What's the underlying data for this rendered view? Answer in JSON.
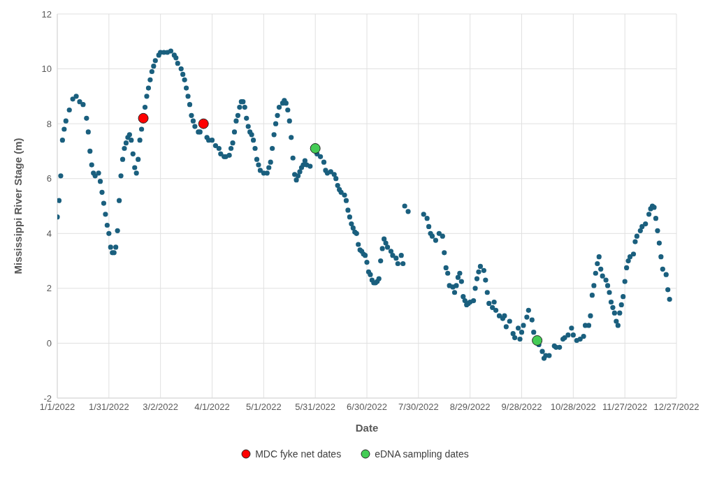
{
  "chart_data": {
    "type": "scatter",
    "xlabel": "Date",
    "ylabel": "Mississippi River Stage (m)",
    "xlim": [
      "2022-01-01",
      "2022-12-27"
    ],
    "xticks": [
      {
        "value": "2022-01-01",
        "label": "1/1/2022"
      },
      {
        "value": "2022-01-31",
        "label": "1/31/2022"
      },
      {
        "value": "2022-03-02",
        "label": "3/2/2022"
      },
      {
        "value": "2022-04-01",
        "label": "4/1/2022"
      },
      {
        "value": "2022-05-01",
        "label": "5/1/2022"
      },
      {
        "value": "2022-05-31",
        "label": "5/31/2022"
      },
      {
        "value": "2022-06-30",
        "label": "6/30/2022"
      },
      {
        "value": "2022-07-30",
        "label": "7/30/2022"
      },
      {
        "value": "2022-08-29",
        "label": "8/29/2022"
      },
      {
        "value": "2022-09-28",
        "label": "9/28/2022"
      },
      {
        "value": "2022-10-28",
        "label": "10/28/2022"
      },
      {
        "value": "2022-11-27",
        "label": "11/27/2022"
      },
      {
        "value": "2022-12-27",
        "label": "12/27/2022"
      }
    ],
    "ylim": [
      -2,
      12
    ],
    "yticks": [
      -2,
      0,
      2,
      4,
      6,
      8,
      10,
      12
    ],
    "grid": true,
    "legend": "bottom",
    "marker": "circle",
    "series": [
      {
        "color": "#1a5f7e",
        "x": [
          "2022-01-01",
          "2022-01-02",
          "2022-01-03",
          "2022-01-04",
          "2022-01-05",
          "2022-01-06",
          "2022-01-08",
          "2022-01-10",
          "2022-01-12",
          "2022-01-14",
          "2022-01-16",
          "2022-01-18",
          "2022-01-19",
          "2022-01-20",
          "2022-01-21",
          "2022-01-22",
          "2022-01-23",
          "2022-01-25",
          "2022-01-26",
          "2022-01-27",
          "2022-01-28",
          "2022-01-29",
          "2022-01-30",
          "2022-01-31",
          "2022-02-01",
          "2022-02-02",
          "2022-02-03",
          "2022-02-04",
          "2022-02-05",
          "2022-02-06",
          "2022-02-07",
          "2022-02-08",
          "2022-02-09",
          "2022-02-10",
          "2022-02-11",
          "2022-02-12",
          "2022-02-13",
          "2022-02-14",
          "2022-02-15",
          "2022-02-16",
          "2022-02-17",
          "2022-02-18",
          "2022-02-19",
          "2022-02-21",
          "2022-02-22",
          "2022-02-23",
          "2022-02-24",
          "2022-02-25",
          "2022-02-26",
          "2022-02-27",
          "2022-03-01",
          "2022-03-02",
          "2022-03-04",
          "2022-03-06",
          "2022-03-08",
          "2022-03-10",
          "2022-03-11",
          "2022-03-12",
          "2022-03-14",
          "2022-03-15",
          "2022-03-16",
          "2022-03-17",
          "2022-03-18",
          "2022-03-19",
          "2022-03-20",
          "2022-03-21",
          "2022-03-22",
          "2022-03-24",
          "2022-03-25",
          "2022-03-29",
          "2022-03-30",
          "2022-04-01",
          "2022-04-03",
          "2022-04-05",
          "2022-04-06",
          "2022-04-08",
          "2022-04-09",
          "2022-04-11",
          "2022-04-12",
          "2022-04-13",
          "2022-04-14",
          "2022-04-15",
          "2022-04-16",
          "2022-04-17",
          "2022-04-18",
          "2022-04-19",
          "2022-04-20",
          "2022-04-21",
          "2022-04-22",
          "2022-04-23",
          "2022-04-24",
          "2022-04-25",
          "2022-04-26",
          "2022-04-27",
          "2022-04-28",
          "2022-04-29",
          "2022-05-01",
          "2022-05-03",
          "2022-05-04",
          "2022-05-05",
          "2022-05-06",
          "2022-05-07",
          "2022-05-08",
          "2022-05-09",
          "2022-05-10",
          "2022-05-12",
          "2022-05-13",
          "2022-05-14",
          "2022-05-15",
          "2022-05-16",
          "2022-05-17",
          "2022-05-18",
          "2022-05-19",
          "2022-05-20",
          "2022-05-21",
          "2022-05-22",
          "2022-05-23",
          "2022-05-24",
          "2022-05-25",
          "2022-05-26",
          "2022-05-28",
          "2022-06-01",
          "2022-06-03",
          "2022-06-05",
          "2022-06-06",
          "2022-06-07",
          "2022-06-09",
          "2022-06-11",
          "2022-06-12",
          "2022-06-13",
          "2022-06-14",
          "2022-06-15",
          "2022-06-17",
          "2022-06-18",
          "2022-06-19",
          "2022-06-20",
          "2022-06-21",
          "2022-06-22",
          "2022-06-23",
          "2022-06-24",
          "2022-06-25",
          "2022-06-26",
          "2022-06-27",
          "2022-06-28",
          "2022-06-29",
          "2022-06-30",
          "2022-07-01",
          "2022-07-02",
          "2022-07-03",
          "2022-07-04",
          "2022-07-05",
          "2022-07-06",
          "2022-07-07",
          "2022-07-08",
          "2022-07-09",
          "2022-07-10",
          "2022-07-11",
          "2022-07-12",
          "2022-07-14",
          "2022-07-15",
          "2022-07-17",
          "2022-07-18",
          "2022-07-20",
          "2022-07-21",
          "2022-07-22",
          "2022-07-24",
          "2022-08-02",
          "2022-08-04",
          "2022-08-05",
          "2022-08-06",
          "2022-08-07",
          "2022-08-09",
          "2022-08-11",
          "2022-08-13",
          "2022-08-14",
          "2022-08-15",
          "2022-08-16",
          "2022-08-17",
          "2022-08-19",
          "2022-08-20",
          "2022-08-21",
          "2022-08-22",
          "2022-08-23",
          "2022-08-24",
          "2022-08-25",
          "2022-08-26",
          "2022-08-27",
          "2022-08-28",
          "2022-08-29",
          "2022-08-31",
          "2022-09-01",
          "2022-09-02",
          "2022-09-03",
          "2022-09-04",
          "2022-09-06",
          "2022-09-07",
          "2022-09-08",
          "2022-09-09",
          "2022-09-11",
          "2022-09-12",
          "2022-09-13",
          "2022-09-15",
          "2022-09-17",
          "2022-09-18",
          "2022-09-19",
          "2022-09-21",
          "2022-09-23",
          "2022-09-24",
          "2022-09-26",
          "2022-09-27",
          "2022-09-28",
          "2022-09-29",
          "2022-10-01",
          "2022-10-02",
          "2022-10-04",
          "2022-10-05",
          "2022-10-08",
          "2022-10-10",
          "2022-10-11",
          "2022-10-12",
          "2022-10-14",
          "2022-10-17",
          "2022-10-18",
          "2022-10-20",
          "2022-10-22",
          "2022-10-23",
          "2022-10-25",
          "2022-10-27",
          "2022-10-28",
          "2022-10-30",
          "2022-11-01",
          "2022-11-03",
          "2022-11-04",
          "2022-11-06",
          "2022-11-07",
          "2022-11-08",
          "2022-11-09",
          "2022-11-10",
          "2022-11-11",
          "2022-11-12",
          "2022-11-13",
          "2022-11-14",
          "2022-11-16",
          "2022-11-17",
          "2022-11-18",
          "2022-11-19",
          "2022-11-20",
          "2022-11-21",
          "2022-11-22",
          "2022-11-23",
          "2022-11-24",
          "2022-11-25",
          "2022-11-26",
          "2022-11-27",
          "2022-11-28",
          "2022-11-29",
          "2022-11-30",
          "2022-12-02",
          "2022-12-03",
          "2022-12-04",
          "2022-12-06",
          "2022-12-07",
          "2022-12-09",
          "2022-12-11",
          "2022-12-12",
          "2022-12-13",
          "2022-12-14",
          "2022-12-15",
          "2022-12-16",
          "2022-12-17",
          "2022-12-18",
          "2022-12-19",
          "2022-12-21",
          "2022-12-22",
          "2022-12-23"
        ],
        "values": [
          4.6,
          5.2,
          6.1,
          7.4,
          7.8,
          8.1,
          8.5,
          8.9,
          9.0,
          8.8,
          8.7,
          8.2,
          7.7,
          7.0,
          6.5,
          6.2,
          6.1,
          6.2,
          5.9,
          5.5,
          5.1,
          4.7,
          4.3,
          4.0,
          3.5,
          3.3,
          3.3,
          3.5,
          4.1,
          5.2,
          6.1,
          6.7,
          7.1,
          7.3,
          7.5,
          7.6,
          7.4,
          6.9,
          6.4,
          6.2,
          6.7,
          7.4,
          7.8,
          8.6,
          9.0,
          9.3,
          9.6,
          9.9,
          10.1,
          10.3,
          10.5,
          10.6,
          10.6,
          10.6,
          10.65,
          10.5,
          10.4,
          10.2,
          10.0,
          9.8,
          9.6,
          9.3,
          9.0,
          8.7,
          8.3,
          8.1,
          7.9,
          7.7,
          7.7,
          7.5,
          7.4,
          7.4,
          7.2,
          7.1,
          6.9,
          6.8,
          6.8,
          6.85,
          7.1,
          7.3,
          7.7,
          8.1,
          8.3,
          8.6,
          8.8,
          8.8,
          8.6,
          8.2,
          7.9,
          7.7,
          7.6,
          7.4,
          7.1,
          6.7,
          6.5,
          6.3,
          6.2,
          6.2,
          6.4,
          6.6,
          7.1,
          7.6,
          8.0,
          8.3,
          8.6,
          8.75,
          8.85,
          8.75,
          8.5,
          8.1,
          7.5,
          6.75,
          6.15,
          5.95,
          6.1,
          6.25,
          6.4,
          6.5,
          6.65,
          6.5,
          6.45,
          6.9,
          6.8,
          6.6,
          6.3,
          6.2,
          6.25,
          6.15,
          6.0,
          5.75,
          5.6,
          5.5,
          5.4,
          5.2,
          4.85,
          4.6,
          4.35,
          4.2,
          4.05,
          4.0,
          3.6,
          3.4,
          3.35,
          3.25,
          3.2,
          2.95,
          2.6,
          2.5,
          2.3,
          2.2,
          2.2,
          2.25,
          2.35,
          3.0,
          3.45,
          3.8,
          3.65,
          3.5,
          3.35,
          3.2,
          3.1,
          2.9,
          3.2,
          2.9,
          5.0,
          4.8,
          4.7,
          4.55,
          4.25,
          4.0,
          3.9,
          3.75,
          4.0,
          3.9,
          3.3,
          2.75,
          2.55,
          2.1,
          2.05,
          1.85,
          2.1,
          2.4,
          2.55,
          2.25,
          1.7,
          1.55,
          1.4,
          1.45,
          1.5,
          1.55,
          2.0,
          2.35,
          2.6,
          2.8,
          2.65,
          2.3,
          1.85,
          1.45,
          1.3,
          1.5,
          1.2,
          1.0,
          0.9,
          1.0,
          0.6,
          0.8,
          0.35,
          0.2,
          0.55,
          0.15,
          0.4,
          0.65,
          0.95,
          1.2,
          0.85,
          0.4,
          -0.05,
          -0.3,
          -0.55,
          -0.45,
          -0.45,
          -0.1,
          -0.15,
          -0.15,
          0.15,
          0.2,
          0.3,
          0.55,
          0.3,
          0.1,
          0.15,
          0.25,
          0.65,
          0.65,
          1.0,
          1.75,
          2.1,
          2.55,
          2.9,
          3.15,
          2.7,
          2.45,
          2.3,
          2.1,
          1.85,
          1.5,
          1.3,
          1.1,
          0.8,
          0.65,
          1.1,
          1.4,
          1.7,
          2.25,
          2.75,
          3.0,
          3.15,
          3.25,
          3.7,
          3.9,
          4.1,
          4.25,
          4.35,
          4.7,
          4.9,
          5.0,
          4.95,
          4.55,
          4.1,
          3.65,
          3.15,
          2.7,
          2.5,
          1.95,
          1.6
        ]
      },
      {
        "name": "MDC fyke net dates",
        "color": "#ff0000",
        "x": [
          "2022-02-20",
          "2022-03-27"
        ],
        "values": [
          8.2,
          8.0
        ]
      },
      {
        "name": "eDNA sampling dates",
        "color": "#44cc55",
        "x": [
          "2022-05-31",
          "2022-10-07"
        ],
        "values": [
          7.1,
          0.1
        ]
      }
    ]
  }
}
